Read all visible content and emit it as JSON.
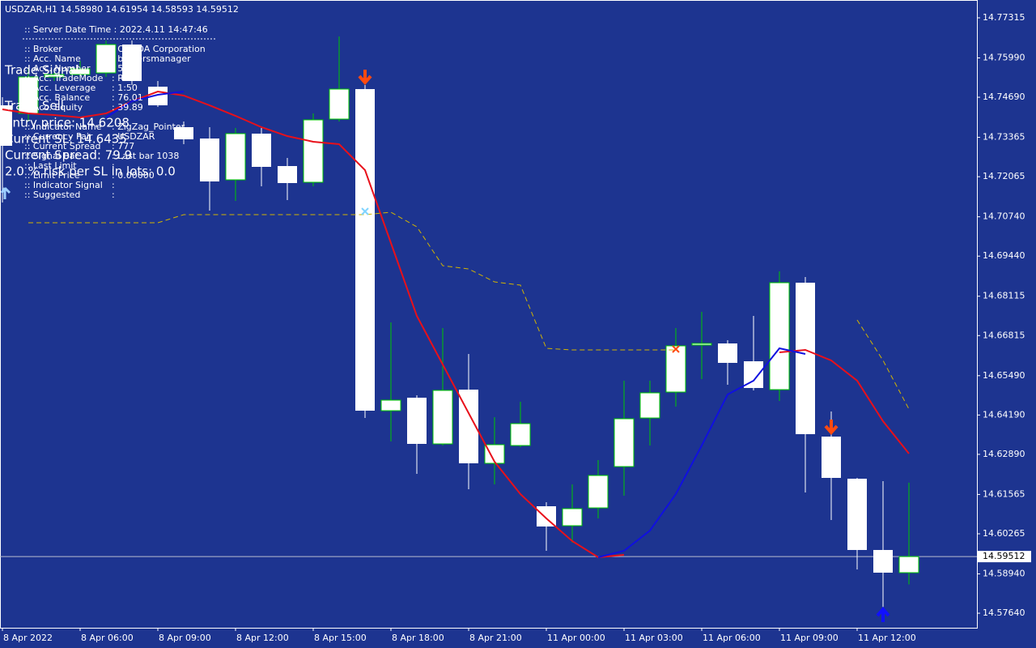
{
  "chart_data": {
    "type": "candlestick",
    "title": "USDZAR,H1  14.58980 14.61954 14.58593 14.59512",
    "categories": [
      "8 Apr 2022",
      null,
      null,
      "8 Apr 06:00",
      null,
      null,
      "8 Apr 09:00",
      null,
      null,
      "8 Apr 12:00",
      null,
      null,
      "8 Apr 15:00",
      null,
      null,
      "8 Apr 18:00",
      null,
      null,
      "8 Apr 21:00",
      null,
      null,
      "11 Apr 00:00",
      null,
      null,
      "11 Apr 03:00",
      null,
      null,
      "11 Apr 06:00",
      null,
      null,
      "11 Apr 09:00",
      null,
      null,
      "11 Apr 12:00",
      null,
      null
    ],
    "open": [
      14.74424,
      14.74157,
      14.75361,
      14.75441,
      14.75495,
      14.76432,
      14.7504,
      14.73702,
      14.73327,
      14.71962,
      14.73488,
      14.72417,
      14.71881,
      14.73969,
      14.7496,
      14.64333,
      14.64762,
      14.63236,
      14.65029,
      14.62594,
      14.63182,
      14.61175,
      14.60532,
      14.61121,
      14.62486,
      14.64092,
      14.64949,
      14.66501,
      14.66555,
      14.65966,
      14.65029,
      14.68562,
      14.63477,
      14.62085,
      14.5973,
      14.5898
    ],
    "high": [
      14.74692,
      14.75629,
      14.75629,
      14.75897,
      14.76566,
      14.76566,
      14.75227,
      14.73889,
      14.73702,
      14.73675,
      14.73675,
      14.72684,
      14.74157,
      14.76699,
      14.75094,
      14.67251,
      14.64842,
      14.67064,
      14.66207,
      14.64119,
      14.64628,
      14.61309,
      14.61898,
      14.62701,
      14.65324,
      14.65324,
      14.67064,
      14.67599,
      14.66662,
      14.67465,
      14.68937,
      14.6875,
      14.64307,
      14.62112,
      14.62005,
      14.61954
    ],
    "low": [
      14.71212,
      14.73889,
      14.75227,
      14.75227,
      14.75361,
      14.75094,
      14.74371,
      14.7314,
      14.70945,
      14.71266,
      14.71748,
      14.71293,
      14.71748,
      14.73889,
      14.64092,
      14.63316,
      14.62245,
      14.63182,
      14.61737,
      14.61898,
      14.63129,
      14.59703,
      14.5997,
      14.60773,
      14.61523,
      14.63182,
      14.64467,
      14.65377,
      14.6519,
      14.65003,
      14.64654,
      14.6163,
      14.6072,
      14.59087,
      14.57776,
      14.58593
    ],
    "close": [
      14.73086,
      14.75361,
      14.75441,
      14.75629,
      14.76432,
      14.75227,
      14.74424,
      14.733,
      14.71908,
      14.73488,
      14.7239,
      14.71855,
      14.73943,
      14.7496,
      14.64333,
      14.64681,
      14.63236,
      14.65003,
      14.62594,
      14.63209,
      14.63905,
      14.60506,
      14.61095,
      14.62192,
      14.64066,
      14.64922,
      14.66475,
      14.66555,
      14.65913,
      14.65083,
      14.68562,
      14.63557,
      14.62112,
      14.5973,
      14.5898,
      14.59512
    ],
    "up_color": "#00c800",
    "down_color": "#ffffff",
    "body_color": "#ffffff",
    "lines": [
      {
        "color": "#e8101a",
        "style": "solid",
        "values": [
          14.7429,
          14.74157,
          14.74103,
          14.74023,
          14.74157,
          14.74558,
          14.74879,
          14.74746,
          14.74424,
          14.74076,
          14.73702,
          14.73407,
          14.7322,
          14.7314,
          14.72283,
          14.69874,
          14.67465,
          14.65859,
          14.64253,
          14.62647,
          14.61577,
          14.60773,
          14.60024,
          14.59488,
          14.59569,
          null,
          null,
          null,
          null,
          null,
          14.66261,
          14.66341,
          14.65993,
          14.65324,
          14.63985,
          14.62915
        ]
      },
      {
        "color": "#1010e0",
        "style": "solid",
        "values": [
          null,
          null,
          null,
          null,
          14.74023,
          14.74558,
          14.74772,
          14.74879,
          null,
          null,
          null,
          null,
          null,
          null,
          null,
          null,
          null,
          null,
          null,
          null,
          null,
          null,
          null,
          14.59488,
          14.59703,
          14.60372,
          14.61577,
          14.63182,
          14.64869,
          14.65324,
          14.66395,
          14.66207,
          null,
          null,
          null,
          null
        ]
      },
      {
        "color": "#d2b400",
        "style": "dashed",
        "values": [
          null,
          14.70543,
          14.70543,
          14.70543,
          14.70543,
          14.70543,
          14.70543,
          14.70811,
          14.70811,
          14.70811,
          14.70811,
          14.70811,
          14.70811,
          14.70811,
          14.70811,
          14.70891,
          14.70409,
          14.69125,
          14.69017,
          14.68589,
          14.68482,
          14.66394,
          14.66341,
          14.66341,
          14.66341,
          14.66341,
          14.66341,
          null,
          null,
          null,
          null,
          null,
          null,
          14.67331,
          14.65993,
          14.64387
        ]
      }
    ],
    "last_price": 14.59512,
    "ylim": [
      14.5716,
      14.77904
    ],
    "yticks": [
      {
        "value": 14.77315,
        "label": "14.77315"
      },
      {
        "value": 14.7599,
        "label": "14.75990"
      },
      {
        "value": 14.7469,
        "label": "14.74690"
      },
      {
        "value": 14.73365,
        "label": "14.73365"
      },
      {
        "value": 14.72065,
        "label": "14.72065"
      },
      {
        "value": 14.7074,
        "label": "14.70740"
      },
      {
        "value": 14.6944,
        "label": "14.69440"
      },
      {
        "value": 14.68115,
        "label": "14.68115"
      },
      {
        "value": 14.66815,
        "label": "14.66815"
      },
      {
        "value": 14.6549,
        "label": "14.65490"
      },
      {
        "value": 14.6419,
        "label": "14.64190"
      },
      {
        "value": 14.6289,
        "label": "14.62890"
      },
      {
        "value": 14.61565,
        "label": "14.61565"
      },
      {
        "value": 14.60265,
        "label": "14.60265"
      },
      {
        "value": 14.5894,
        "label": "14.58940"
      },
      {
        "value": 14.5764,
        "label": "14.57640"
      }
    ],
    "grid": false
  },
  "info_panel": {
    "server_time": ":: Server Date Time : 2022.4.11   14:47:46",
    "rows": [
      [
        ":: Broker",
        ": OANDA Corporation"
      ],
      [
        ":: Acc. Name",
        ": brokersmanager"
      ],
      [
        ":: Acc. Number",
        ": 55"
      ],
      [
        ":: Acc. TradeMode",
        ": R"
      ],
      [
        ":: Acc. Leverage",
        ": 1:50"
      ],
      [
        ":: Acc. Balance",
        ": 76.01"
      ],
      [
        ":: Acc. Equity",
        ": 39.89"
      ],
      [
        ":: Indicator Name",
        ": ZigZag_Pointer"
      ],
      [
        ":: Currency Pair",
        ": USDZAR"
      ],
      [
        ":: Current Spread",
        ": 777"
      ],
      [
        ":: Signal Bar",
        ": Last bar 1038"
      ],
      [
        ":: Last Limit",
        ":"
      ],
      [
        ":: Limit Price",
        ": 0.00000"
      ],
      [
        ":: Indicator Signal",
        ":"
      ],
      [
        ":: Suggested",
        ":"
      ]
    ]
  },
  "trade_panel": [
    "Trade Signal",
    "Trade Sell",
    "Entry price: 14.6208",
    "Current SL: 14.6435",
    "Current Spread: 79.9",
    "2.0 % risk per SL in lots: 0.0"
  ]
}
